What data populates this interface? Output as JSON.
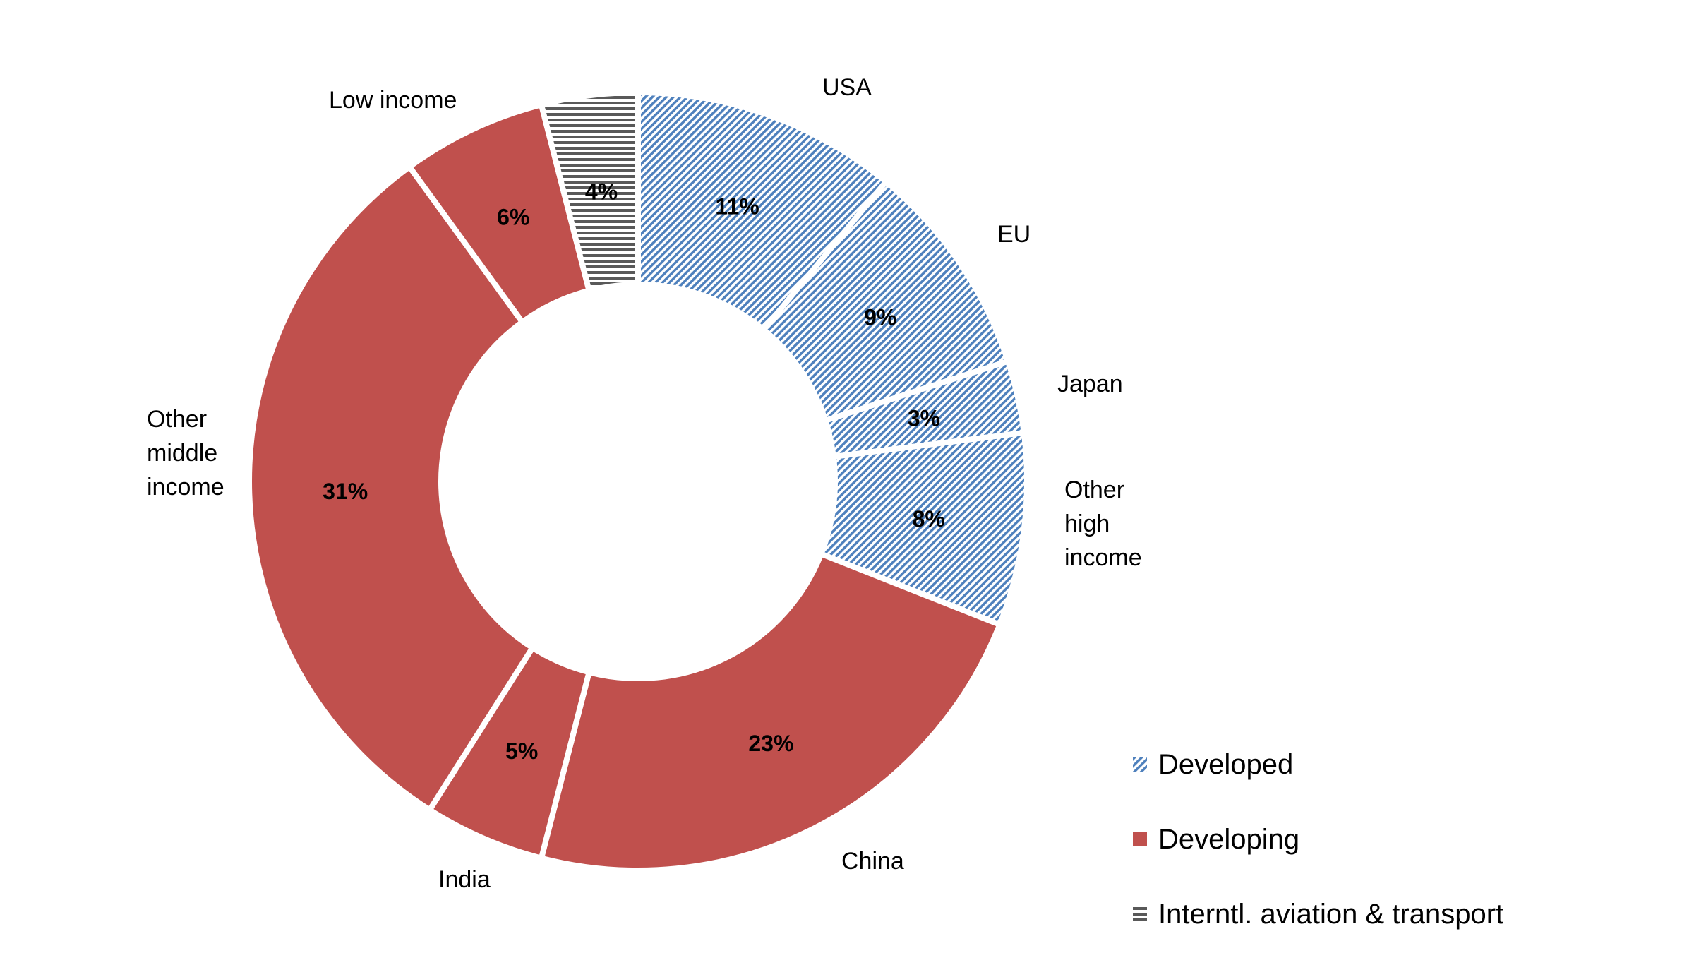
{
  "chart_data": {
    "type": "pie",
    "variant": "donut",
    "title": "",
    "start_angle_deg": 0,
    "direction": "clockwise",
    "slices": [
      {
        "label": "USA",
        "value": 11,
        "display": "11%",
        "group": "Developed"
      },
      {
        "label": "EU",
        "value": 9,
        "display": "9%",
        "group": "Developed"
      },
      {
        "label": "Japan",
        "value": 3,
        "display": "3%",
        "group": "Developed"
      },
      {
        "label": "Other high income",
        "value": 8,
        "display": "8%",
        "group": "Developed"
      },
      {
        "label": "China",
        "value": 23,
        "display": "23%",
        "group": "Developing"
      },
      {
        "label": "India",
        "value": 5,
        "display": "5%",
        "group": "Developing"
      },
      {
        "label": "Other middle income",
        "value": 31,
        "display": "31%",
        "group": "Developing"
      },
      {
        "label": "Low income",
        "value": 6,
        "display": "6%",
        "group": "Developing"
      },
      {
        "label": "Interntl. aviation & transport",
        "value": 4,
        "display": "4%",
        "group": "Interntl. aviation & transport"
      }
    ],
    "legend": {
      "position": "bottom-right",
      "entries": [
        {
          "label": "Developed",
          "pattern": "diagonal-hatch",
          "color": "#4F81BD"
        },
        {
          "label": "Developing",
          "pattern": "solid",
          "color": "#C0504D"
        },
        {
          "label": "Interntl. aviation & transport",
          "pattern": "horizontal-lines",
          "color": "#595959"
        }
      ]
    }
  },
  "labels": {
    "usa": "USA",
    "eu": "EU",
    "japan": "Japan",
    "other_high": "Other\nhigh\nincome",
    "china": "China",
    "india": "India",
    "other_middle": "Other\nmiddle\nincome",
    "low_income": "Low income"
  },
  "legend": {
    "developed": "Developed",
    "developing": "Developing",
    "intl": "Interntl. aviation & transport"
  },
  "colors": {
    "developed": "#4F81BD",
    "developing": "#C0504D",
    "intl": "#595959"
  }
}
